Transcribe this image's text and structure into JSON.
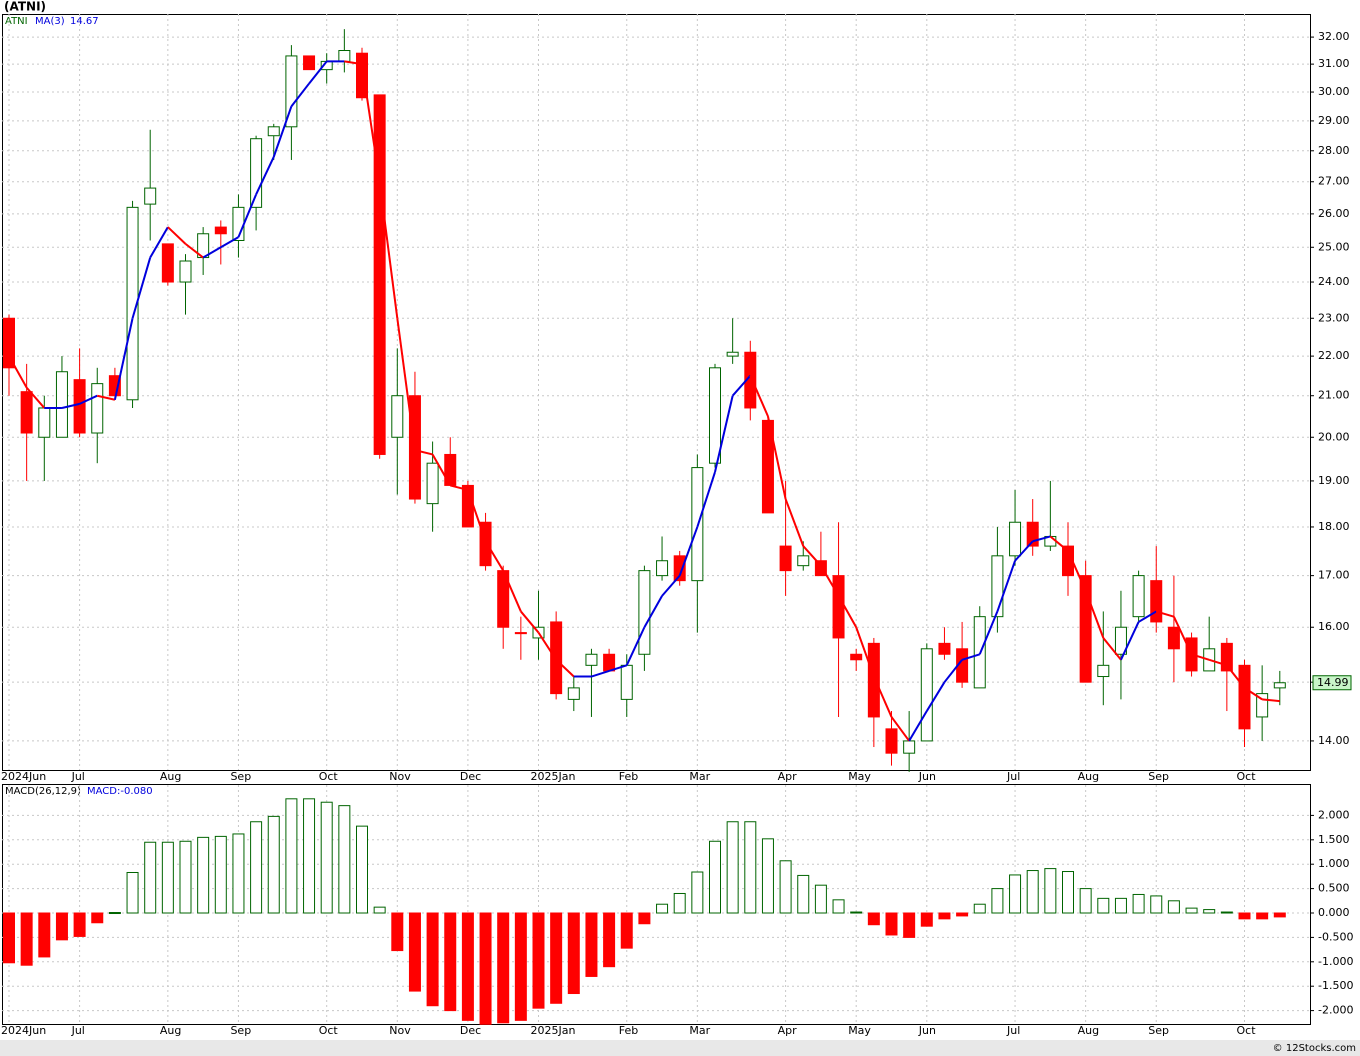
{
  "chart_data": [
    {
      "type": "candlestick",
      "title": "(ATNI)",
      "name": "ATNI",
      "categories": [
        "2024Jun",
        null,
        null,
        null,
        "Jul",
        null,
        null,
        null,
        null,
        "Aug",
        null,
        null,
        null,
        "Sep",
        null,
        null,
        null,
        null,
        "Oct",
        null,
        null,
        null,
        "Nov",
        null,
        null,
        null,
        "Dec",
        null,
        null,
        null,
        "2025Jan",
        null,
        null,
        null,
        null,
        "Feb",
        null,
        null,
        null,
        "Mar",
        null,
        null,
        null,
        null,
        "Apr",
        null,
        null,
        null,
        "May",
        null,
        null,
        null,
        "Jun",
        null,
        null,
        null,
        null,
        "Jul",
        null,
        null,
        null,
        "Aug",
        null,
        null,
        null,
        "Sep",
        null,
        null,
        null,
        null,
        "Oct",
        null,
        null
      ],
      "open": [
        23.0,
        21.1,
        20.0,
        20.0,
        21.4,
        20.1,
        21.5,
        20.9,
        26.3,
        25.1,
        24.0,
        24.7,
        25.6,
        25.2,
        26.2,
        28.5,
        28.8,
        31.3,
        30.8,
        31.1,
        31.4,
        29.9,
        20.0,
        21.0,
        18.5,
        19.6,
        18.9,
        18.1,
        17.1,
        15.9,
        15.8,
        16.1,
        14.7,
        15.3,
        15.5,
        14.7,
        15.5,
        17.0,
        17.4,
        16.9,
        19.4,
        22.0,
        22.1,
        20.4,
        17.6,
        17.2,
        17.3,
        17.0,
        15.5,
        15.7,
        14.2,
        13.8,
        14.0,
        15.7,
        15.6,
        14.9,
        16.2,
        17.4,
        18.1,
        17.6,
        17.6,
        17.0,
        15.1,
        15.5,
        16.2,
        16.9,
        16.0,
        15.8,
        15.2,
        15.7,
        15.3,
        14.4,
        14.9
      ],
      "high": [
        23.1,
        21.8,
        21.0,
        22.0,
        22.2,
        21.7,
        21.7,
        26.4,
        28.7,
        25.1,
        24.8,
        25.6,
        25.8,
        26.6,
        28.5,
        28.9,
        31.7,
        31.3,
        31.4,
        32.3,
        31.6,
        29.9,
        22.2,
        21.6,
        19.9,
        20.0,
        19.0,
        18.3,
        17.2,
        16.2,
        16.7,
        16.3,
        15.1,
        15.6,
        15.6,
        15.5,
        17.2,
        17.8,
        17.5,
        19.6,
        21.8,
        23.0,
        22.4,
        20.5,
        19.0,
        17.7,
        17.9,
        18.1,
        15.6,
        15.8,
        14.5,
        14.5,
        15.7,
        16.0,
        16.1,
        16.4,
        18.0,
        18.8,
        18.6,
        19.0,
        18.1,
        17.3,
        16.3,
        16.7,
        17.1,
        17.6,
        17.0,
        15.9,
        16.2,
        15.8,
        15.4,
        15.3,
        15.2
      ],
      "low": [
        21.0,
        19.0,
        19.0,
        20.0,
        20.0,
        19.4,
        20.9,
        20.7,
        25.2,
        23.9,
        23.1,
        24.2,
        24.5,
        24.7,
        25.5,
        27.7,
        27.7,
        30.8,
        30.3,
        30.7,
        29.7,
        19.5,
        18.7,
        18.5,
        17.9,
        18.9,
        18.0,
        17.1,
        15.6,
        15.4,
        15.4,
        14.7,
        14.5,
        14.4,
        15.2,
        14.4,
        15.2,
        16.9,
        16.8,
        15.9,
        19.3,
        21.8,
        20.4,
        18.3,
        16.6,
        17.1,
        17.0,
        14.4,
        15.2,
        13.9,
        13.6,
        13.5,
        14.0,
        15.4,
        14.9,
        14.9,
        15.9,
        17.2,
        17.4,
        17.5,
        16.6,
        15.0,
        14.6,
        14.7,
        16.1,
        15.9,
        15.0,
        15.1,
        15.2,
        14.5,
        13.9,
        14.0,
        14.6
      ],
      "close": [
        21.7,
        20.1,
        20.7,
        21.6,
        20.1,
        21.3,
        21.0,
        26.2,
        26.8,
        24.0,
        24.6,
        25.4,
        25.4,
        26.2,
        28.4,
        28.8,
        31.3,
        30.8,
        31.1,
        31.5,
        29.8,
        19.6,
        21.0,
        18.6,
        19.4,
        18.9,
        18.0,
        17.2,
        16.0,
        15.88,
        16.0,
        14.8,
        14.9,
        15.5,
        15.2,
        15.3,
        17.1,
        17.3,
        16.9,
        19.3,
        21.7,
        22.1,
        20.7,
        18.3,
        17.1,
        17.4,
        17.0,
        15.8,
        15.4,
        14.4,
        13.8,
        14.0,
        15.6,
        15.5,
        15.0,
        16.2,
        17.4,
        18.1,
        17.6,
        17.8,
        17.0,
        15.0,
        15.3,
        16.0,
        17.0,
        16.1,
        15.6,
        15.2,
        15.6,
        15.2,
        14.2,
        14.8,
        14.99
      ],
      "up_color": "#006400",
      "down_color": "#ff0000",
      "ma": {
        "name": "MA(3)",
        "up_color": "#0000dd",
        "down_color": "#ff0000",
        "values": [
          22.0,
          21.2,
          20.7,
          20.7,
          20.8,
          21.0,
          20.9,
          23.0,
          24.7,
          25.6,
          25.1,
          24.7,
          25.0,
          25.3,
          26.6,
          27.8,
          29.5,
          30.3,
          31.1,
          31.1,
          31.0,
          27.0,
          23.0,
          19.7,
          19.6,
          18.9,
          18.8,
          17.7,
          17.1,
          16.3,
          15.9,
          15.4,
          15.1,
          15.1,
          15.2,
          15.3,
          16.0,
          16.6,
          17.0,
          18.0,
          19.2,
          21.0,
          21.5,
          20.5,
          18.6,
          17.6,
          17.2,
          16.6,
          16.0,
          15.1,
          14.4,
          14.0,
          14.5,
          15.0,
          15.4,
          15.5,
          16.3,
          17.3,
          17.7,
          17.8,
          17.5,
          16.7,
          15.8,
          15.4,
          16.1,
          16.3,
          16.2,
          15.5,
          15.4,
          15.3,
          14.9,
          14.7,
          14.67
        ]
      },
      "log_scale": true,
      "grid": true,
      "ylim": [
        13.53,
        32.88
      ],
      "yticks": [
        {
          "value": 14,
          "label": "14.00"
        },
        {
          "value": 15,
          "label": "15.00"
        },
        {
          "value": 16,
          "label": "16.00"
        },
        {
          "value": 17,
          "label": "17.00"
        },
        {
          "value": 18,
          "label": "18.00"
        },
        {
          "value": 19,
          "label": "19.00"
        },
        {
          "value": 20,
          "label": "20.00"
        },
        {
          "value": 21,
          "label": "21.00"
        },
        {
          "value": 22,
          "label": "22.00"
        },
        {
          "value": 23,
          "label": "23.00"
        },
        {
          "value": 24,
          "label": "24.00"
        },
        {
          "value": 25,
          "label": "25.00"
        },
        {
          "value": 26,
          "label": "26.00"
        },
        {
          "value": 27,
          "label": "27.00"
        },
        {
          "value": 28,
          "label": "28.00"
        },
        {
          "value": 29,
          "label": "29.00"
        },
        {
          "value": 30,
          "label": "30.00"
        },
        {
          "value": 31,
          "label": "31.00"
        },
        {
          "value": 32,
          "label": "32.00"
        }
      ]
    },
    {
      "type": "bar",
      "name": "MACD(26,12,9)",
      "current_label": "MACD:-0.080",
      "values": [
        -1.02,
        -1.07,
        -0.9,
        -0.55,
        -0.48,
        -0.2,
        0.01,
        0.83,
        1.45,
        1.45,
        1.47,
        1.55,
        1.57,
        1.62,
        1.87,
        1.98,
        2.34,
        2.34,
        2.27,
        2.2,
        1.78,
        0.12,
        -0.77,
        -1.6,
        -1.9,
        -2.0,
        -2.2,
        -2.28,
        -2.25,
        -2.2,
        -1.95,
        -1.85,
        -1.65,
        -1.3,
        -1.1,
        -0.72,
        -0.22,
        0.18,
        0.4,
        0.84,
        1.47,
        1.87,
        1.87,
        1.52,
        1.07,
        0.77,
        0.57,
        0.27,
        0.02,
        -0.24,
        -0.45,
        -0.5,
        -0.27,
        -0.12,
        -0.06,
        0.18,
        0.5,
        0.78,
        0.87,
        0.91,
        0.85,
        0.5,
        0.3,
        0.3,
        0.38,
        0.35,
        0.25,
        0.1,
        0.07,
        0.02,
        -0.12,
        -0.12,
        -0.08
      ],
      "up_color": "#006400",
      "down_color": "#ff0000",
      "grid": true,
      "ylim": [
        -2.295,
        2.623
      ],
      "yticks": [
        {
          "value": -2,
          "label": "-2.000"
        },
        {
          "value": -1.5,
          "label": "-1.500"
        },
        {
          "value": -1,
          "label": "-1.000"
        },
        {
          "value": -0.5,
          "label": "-0.500"
        },
        {
          "value": 0,
          "label": "0.000"
        },
        {
          "value": 0.5,
          "label": "0.500"
        },
        {
          "value": 1,
          "label": "1.000"
        },
        {
          "value": 1.5,
          "label": "1.500"
        },
        {
          "value": 2,
          "label": "2.000"
        }
      ]
    }
  ],
  "credit": "© 12Stocks.com"
}
